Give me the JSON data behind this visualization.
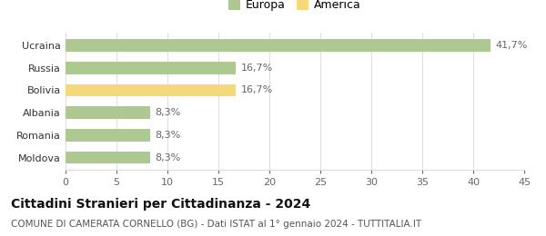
{
  "categories": [
    "Moldova",
    "Romania",
    "Albania",
    "Bolivia",
    "Russia",
    "Ucraina"
  ],
  "values": [
    8.3,
    8.3,
    8.3,
    16.7,
    16.7,
    41.7
  ],
  "labels": [
    "8,3%",
    "8,3%",
    "8,3%",
    "16,7%",
    "16,7%",
    "41,7%"
  ],
  "colors": [
    "#adc991",
    "#adc991",
    "#adc991",
    "#f5d87a",
    "#adc991",
    "#adc991"
  ],
  "legend": [
    {
      "label": "Europa",
      "color": "#adc991"
    },
    {
      "label": "America",
      "color": "#f5d87a"
    }
  ],
  "title": "Cittadini Stranieri per Cittadinanza - 2024",
  "subtitle": "COMUNE DI CAMERATA CORNELLO (BG) - Dati ISTAT al 1° gennaio 2024 - TUTTITALIA.IT",
  "xlim": [
    0,
    45
  ],
  "xticks": [
    0,
    5,
    10,
    15,
    20,
    25,
    30,
    35,
    40,
    45
  ],
  "background_color": "#ffffff",
  "grid_color": "#dddddd",
  "bar_height": 0.55,
  "title_fontsize": 10,
  "subtitle_fontsize": 7.5,
  "tick_fontsize": 8,
  "label_fontsize": 8,
  "legend_fontsize": 9
}
